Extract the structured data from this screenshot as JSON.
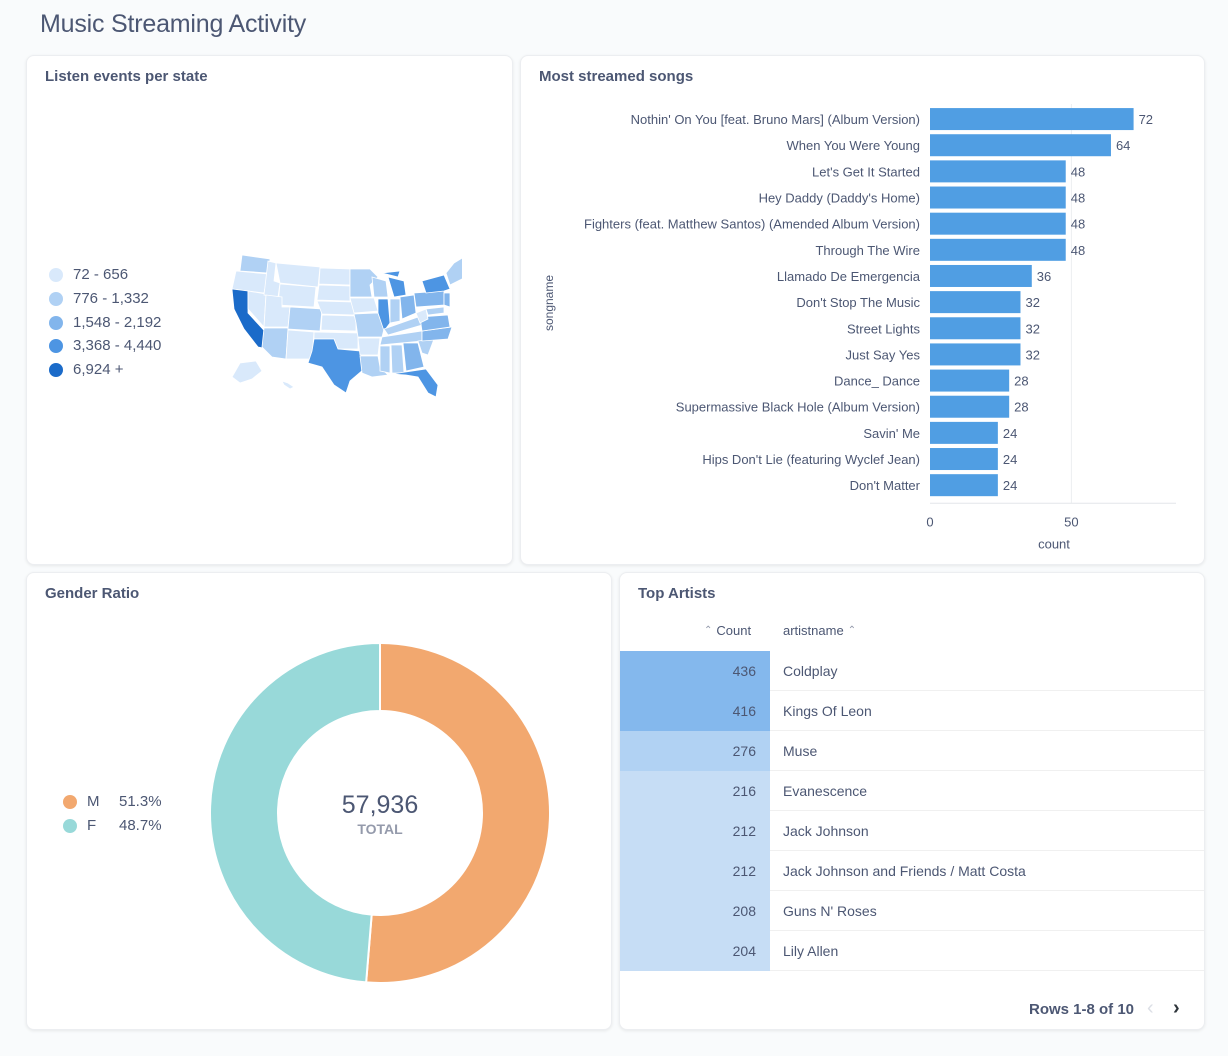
{
  "page_title": "Music Streaming Activity",
  "map_card": {
    "title": "Listen events per state",
    "legend": [
      {
        "label": "72 - 656",
        "color": "#d9e9fb"
      },
      {
        "label": "776 - 1,332",
        "color": "#b0d1f4"
      },
      {
        "label": "1,548 - 2,192",
        "color": "#82b5ec"
      },
      {
        "label": "3,368 - 4,440",
        "color": "#4d95e3"
      },
      {
        "label": "6,924 +",
        "color": "#1b6bc9"
      }
    ]
  },
  "songs_card": {
    "title": "Most streamed songs",
    "chart_data": {
      "type": "bar",
      "orientation": "horizontal",
      "categories": [
        "Nothin' On You [feat. Bruno Mars] (Album Version)",
        "When You Were Young",
        "Let's Get It Started",
        "Hey Daddy (Daddy's Home)",
        "Fighters (feat. Matthew Santos) (Amended Album Version)",
        "Through The Wire",
        "Llamado De Emergencia",
        "Don't Stop The Music",
        "Street Lights",
        "Just Say Yes",
        "Dance_ Dance",
        "Supermassive Black Hole (Album Version)",
        "Savin' Me",
        "Hips Don't Lie (featuring Wyclef Jean)",
        "Don't Matter"
      ],
      "values": [
        72,
        64,
        48,
        48,
        48,
        48,
        36,
        32,
        32,
        32,
        28,
        28,
        24,
        24,
        24
      ],
      "xlabel": "count",
      "ylabel": "songname",
      "xticks": [
        0,
        50
      ],
      "xlim": [
        0,
        87
      ],
      "grid": true,
      "bar_color": "#509ee3"
    }
  },
  "gender_card": {
    "title": "Gender Ratio",
    "chart_data": {
      "type": "pie",
      "slices": [
        {
          "label": "M",
          "value": 51.3,
          "display": "51.3%",
          "color": "#f2a86f"
        },
        {
          "label": "F",
          "value": 48.7,
          "display": "48.7%",
          "color": "#98d9d9"
        }
      ],
      "total": "57,936",
      "total_label": "TOTAL"
    }
  },
  "artists_card": {
    "title": "Top Artists",
    "columns": {
      "count": "Count",
      "name": "artistname"
    },
    "rows": [
      {
        "count": "436",
        "name": "Coldplay",
        "shade": "#84b8ed"
      },
      {
        "count": "416",
        "name": "Kings Of Leon",
        "shade": "#84b8ed"
      },
      {
        "count": "276",
        "name": "Muse",
        "shade": "#b1d2f3"
      },
      {
        "count": "216",
        "name": "Evanescence",
        "shade": "#c6ddf5"
      },
      {
        "count": "212",
        "name": "Jack Johnson",
        "shade": "#c6ddf5"
      },
      {
        "count": "212",
        "name": "Jack Johnson and Friends / Matt Costa",
        "shade": "#c6ddf5"
      },
      {
        "count": "208",
        "name": "Guns N' Roses",
        "shade": "#c6ddf5"
      },
      {
        "count": "204",
        "name": "Lily Allen",
        "shade": "#c6ddf5"
      }
    ],
    "pagination": "Rows 1-8 of 10"
  }
}
